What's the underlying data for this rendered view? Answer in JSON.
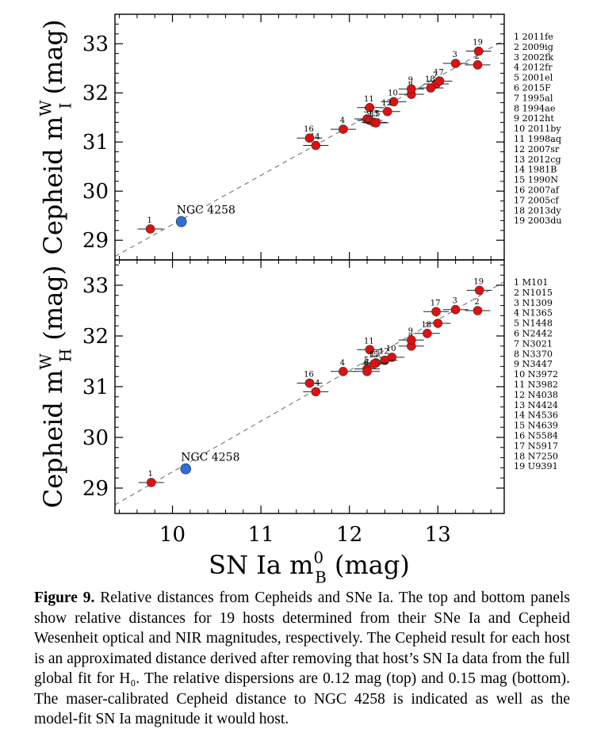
{
  "figure": {
    "xlabel": {
      "main": "SN Ia m",
      "sup": "0",
      "sub": "B",
      "tail": " (mag)"
    },
    "xlim": [
      9.35,
      13.75
    ],
    "xticks": [
      10,
      11,
      12,
      13
    ],
    "ref_line": {
      "x0": 9.35,
      "y0": 28.67,
      "x1": 13.75,
      "y1": 33.07
    },
    "caption": {
      "label": "Figure 9.",
      "text": " Relative distances from Cepheids and SNe Ia. The top and bottom panels show relative distances for 19 hosts determined from their SNe Ia and Cepheid Wesenheit optical and NIR magnitudes, respectively. The Cepheid result for each host is an approximated distance derived after removing that host’s SN Ia data from the full global fit for H₀. The relative dispersions are 0.12 mag (top) and 0.15 mag (bottom). The maser-calibrated Cepheid distance to NGC 4258 is indicated as well as the model-fit SN Ia magnitude it would host."
    }
  },
  "chart_data": [
    {
      "type": "scatter",
      "panel": "top",
      "ylabel": {
        "main": "Cepheid m",
        "sup": "W",
        "sub": "I",
        "tail": " (mag)"
      },
      "ylim": [
        28.6,
        33.6
      ],
      "yticks": [
        29,
        30,
        31,
        32,
        33
      ],
      "anchor": {
        "label": "NGC 4258",
        "x": 10.1,
        "y": 29.38,
        "color": "#2e6fd6"
      },
      "point_color": "#e01010",
      "legend": [
        "1  2011fe",
        "2  2009ig",
        "3  2002fk",
        "4  2012fr",
        "5  2001el",
        "6  2015F",
        "7  1995al",
        "8  1994ae",
        "9  2012ht",
        "10  2011by",
        "11  1998aq",
        "12  2007sr",
        "13  2012cg",
        "14  1981B",
        "15  1990N",
        "16  2007af",
        "17  2005cf",
        "18  2013dy",
        "19  2003du"
      ],
      "points": [
        {
          "id": "1",
          "x": 9.75,
          "y": 29.23
        },
        {
          "id": "2",
          "x": 13.45,
          "y": 32.57
        },
        {
          "id": "3",
          "x": 13.2,
          "y": 32.6
        },
        {
          "id": "4",
          "x": 11.93,
          "y": 31.26
        },
        {
          "id": "5",
          "x": 12.2,
          "y": 31.47
        },
        {
          "id": "6",
          "x": 12.23,
          "y": 31.44
        },
        {
          "id": "7",
          "x": 12.98,
          "y": 32.18
        },
        {
          "id": "8",
          "x": 12.7,
          "y": 31.97
        },
        {
          "id": "9",
          "x": 12.7,
          "y": 32.08
        },
        {
          "id": "10",
          "x": 12.5,
          "y": 31.82
        },
        {
          "id": "11",
          "x": 12.23,
          "y": 31.7
        },
        {
          "id": "12",
          "x": 12.43,
          "y": 31.62
        },
        {
          "id": "13",
          "x": 12.28,
          "y": 31.4
        },
        {
          "id": "14",
          "x": 11.62,
          "y": 30.93
        },
        {
          "id": "15",
          "x": 12.3,
          "y": 31.39
        },
        {
          "id": "16",
          "x": 11.55,
          "y": 31.08
        },
        {
          "id": "17",
          "x": 13.02,
          "y": 32.24
        },
        {
          "id": "18",
          "x": 12.92,
          "y": 32.1
        },
        {
          "id": "19",
          "x": 13.46,
          "y": 32.85
        }
      ]
    },
    {
      "type": "scatter",
      "panel": "bottom",
      "ylabel": {
        "main": "Cepheid m",
        "sup": "W",
        "sub": "H",
        "tail": " (mag)"
      },
      "ylim": [
        28.5,
        33.5
      ],
      "yticks": [
        29,
        30,
        31,
        32,
        33
      ],
      "anchor": {
        "label": "NGC 4258",
        "x": 10.15,
        "y": 29.38,
        "color": "#2e6fd6"
      },
      "point_color": "#e01010",
      "legend": [
        "1  M101",
        "2  N1015",
        "3  N1309",
        "4  N1365",
        "5  N1448",
        "6  N2442",
        "7  N3021",
        "8  N3370",
        "9  N3447",
        "10  N3972",
        "11  N3982",
        "12  N4038",
        "13  N4424",
        "14  N4536",
        "15  N4639",
        "16  N5584",
        "17  N5917",
        "18  N7250",
        "19  U9391"
      ],
      "points": [
        {
          "id": "1",
          "x": 9.76,
          "y": 29.11
        },
        {
          "id": "2",
          "x": 13.45,
          "y": 32.5
        },
        {
          "id": "3",
          "x": 13.2,
          "y": 32.52
        },
        {
          "id": "4",
          "x": 11.93,
          "y": 31.3
        },
        {
          "id": "5",
          "x": 12.2,
          "y": 31.35
        },
        {
          "id": "6",
          "x": 12.2,
          "y": 31.3
        },
        {
          "id": "7",
          "x": 13.0,
          "y": 32.25
        },
        {
          "id": "8",
          "x": 12.7,
          "y": 31.8
        },
        {
          "id": "9",
          "x": 12.7,
          "y": 31.92
        },
        {
          "id": "10",
          "x": 12.48,
          "y": 31.58
        },
        {
          "id": "11",
          "x": 12.23,
          "y": 31.73
        },
        {
          "id": "12",
          "x": 12.4,
          "y": 31.52
        },
        {
          "id": "13",
          "x": 12.3,
          "y": 31.47
        },
        {
          "id": "14",
          "x": 11.62,
          "y": 30.9
        },
        {
          "id": "15",
          "x": 12.28,
          "y": 31.45
        },
        {
          "id": "16",
          "x": 11.55,
          "y": 31.07
        },
        {
          "id": "17",
          "x": 12.98,
          "y": 32.48
        },
        {
          "id": "18",
          "x": 12.88,
          "y": 32.05
        },
        {
          "id": "19",
          "x": 13.47,
          "y": 32.9
        }
      ]
    }
  ]
}
